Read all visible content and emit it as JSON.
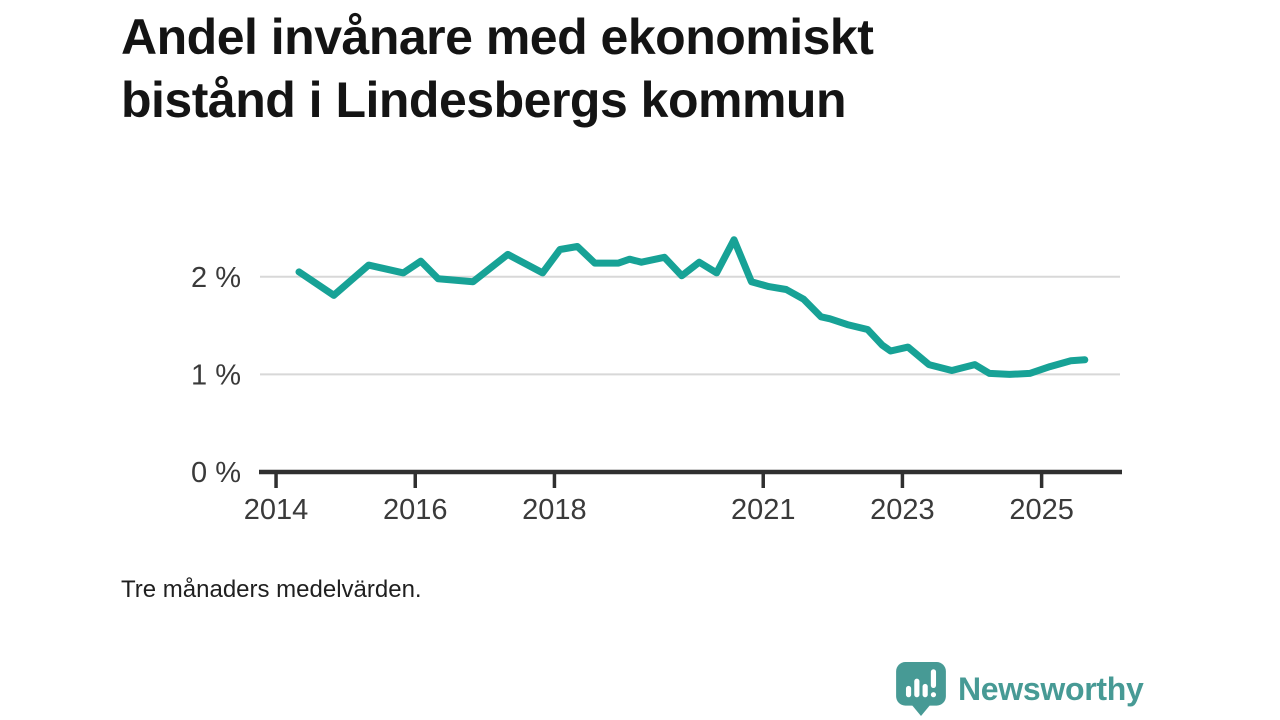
{
  "title": {
    "lines": [
      "Andel invånare med ekonomiskt",
      "bistånd i Lindesbergs kommun"
    ]
  },
  "footnote": "Tre månaders medelvärden.",
  "branding": {
    "name": "Newsworthy",
    "logo_icon": "bar-chart-speech-bubble-icon",
    "color": "#479a95"
  },
  "colors": {
    "line": "#17a296",
    "gridline": "#d8d8d8",
    "axis": "#2f2f2f",
    "tick_label": "#3a3a3a",
    "title": "#141414",
    "footnote": "#1f1f1f",
    "background": "#ffffff"
  },
  "chart_data": {
    "type": "line",
    "title": "Andel invånare med ekonomiskt bistånd i Lindesbergs kommun",
    "subtitle": "Tre månaders medelvärden.",
    "xlabel": "",
    "ylabel": "",
    "unit": "%",
    "grid": "horizontal",
    "legend": "none",
    "xlim": [
      2013.755,
      2026.155
    ],
    "ylim": [
      0,
      2.5
    ],
    "x_ticks": [
      {
        "value": 2014,
        "label": "2014"
      },
      {
        "value": 2016,
        "label": "2016"
      },
      {
        "value": 2018,
        "label": "2018"
      },
      {
        "value": 2021,
        "label": "2021"
      },
      {
        "value": 2023,
        "label": "2023"
      },
      {
        "value": 2025,
        "label": "2025"
      }
    ],
    "y_ticks": [
      {
        "value": 0,
        "label": "0 %"
      },
      {
        "value": 1,
        "label": "1 %"
      },
      {
        "value": 2,
        "label": "2 %"
      }
    ],
    "series": [
      {
        "name": "Andel invånare med ekonomiskt bistånd",
        "color": "#17a296",
        "x": [
          2014.33,
          2014.83,
          2015.33,
          2015.83,
          2016.08,
          2016.33,
          2016.83,
          2017.33,
          2017.83,
          2018.08,
          2018.33,
          2018.58,
          2018.92,
          2019.08,
          2019.25,
          2019.58,
          2019.83,
          2020.08,
          2020.33,
          2020.58,
          2020.83,
          2021.08,
          2021.33,
          2021.58,
          2021.83,
          2021.96,
          2022.21,
          2022.5,
          2022.71,
          2022.83,
          2023.08,
          2023.38,
          2023.71,
          2024.04,
          2024.25,
          2024.54,
          2024.83,
          2025.12,
          2025.42,
          2025.62
        ],
        "values": [
          2.05,
          1.81,
          2.12,
          2.04,
          2.16,
          1.98,
          1.95,
          2.23,
          2.04,
          2.28,
          2.31,
          2.14,
          2.14,
          2.18,
          2.15,
          2.2,
          2.01,
          2.15,
          2.04,
          2.38,
          1.95,
          1.9,
          1.87,
          1.77,
          1.59,
          1.57,
          1.51,
          1.46,
          1.3,
          1.24,
          1.28,
          1.1,
          1.04,
          1.1,
          1.01,
          1.0,
          1.01,
          1.08,
          1.14,
          1.15
        ]
      }
    ]
  }
}
